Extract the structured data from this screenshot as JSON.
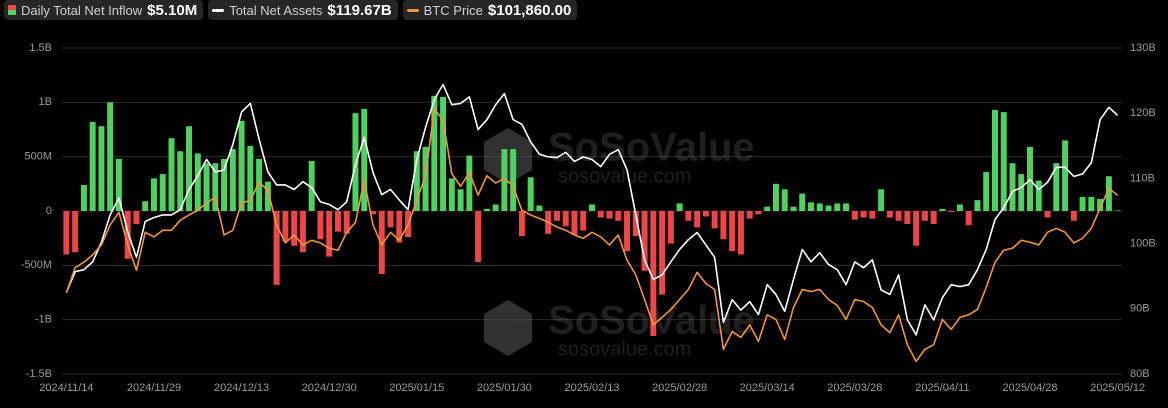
{
  "chart_data": {
    "type": "bar-line",
    "categories": [
      "2024/11/14",
      null,
      null,
      null,
      null,
      null,
      null,
      null,
      null,
      null,
      "2024/11/29",
      null,
      null,
      null,
      null,
      null,
      null,
      null,
      null,
      null,
      "2024/12/13",
      null,
      null,
      null,
      null,
      null,
      null,
      null,
      null,
      null,
      "2024/12/30",
      null,
      null,
      null,
      null,
      null,
      null,
      null,
      null,
      null,
      "2025/01/15",
      null,
      null,
      null,
      null,
      null,
      null,
      null,
      null,
      null,
      "2025/01/30",
      null,
      null,
      null,
      null,
      null,
      null,
      null,
      null,
      null,
      "2025/02/13",
      null,
      null,
      null,
      null,
      null,
      null,
      null,
      null,
      null,
      "2025/02/28",
      null,
      null,
      null,
      null,
      null,
      null,
      null,
      null,
      null,
      "2025/03/14",
      null,
      null,
      null,
      null,
      null,
      null,
      null,
      null,
      null,
      "2025/03/28",
      null,
      null,
      null,
      null,
      null,
      null,
      null,
      null,
      null,
      "2025/04/11",
      null,
      null,
      null,
      null,
      null,
      null,
      null,
      null,
      null,
      "2025/04/28",
      null,
      null,
      null,
      null,
      null,
      null,
      null,
      null,
      null,
      "2025/05/12"
    ],
    "series": [
      {
        "name": "Daily Total Net Inflow",
        "legend_value": "$5.10M",
        "kind": "bar",
        "axis": "y",
        "positive_color": "#4fd05f",
        "negative_color": "#ec4646",
        "values": [
          -400,
          -380,
          240,
          820,
          780,
          1000,
          480,
          -440,
          -120,
          90,
          300,
          340,
          670,
          550,
          780,
          530,
          440,
          440,
          480,
          570,
          830,
          600,
          480,
          270,
          -680,
          -280,
          -320,
          -380,
          460,
          -260,
          -420,
          -190,
          -210,
          900,
          940,
          -30,
          -580,
          -150,
          -290,
          -240,
          550,
          590,
          1060,
          1050,
          300,
          200,
          510,
          -470,
          20,
          60,
          570,
          570,
          -230,
          310,
          50,
          -210,
          -90,
          -140,
          -220,
          -180,
          60,
          -60,
          -70,
          -90,
          -370,
          -230,
          -550,
          -1150,
          -770,
          -300,
          70,
          -90,
          -150,
          -50,
          -160,
          -260,
          -370,
          -400,
          -70,
          -30,
          40,
          250,
          200,
          40,
          160,
          80,
          70,
          50,
          70,
          70,
          -80,
          -60,
          -70,
          200,
          -60,
          -90,
          -120,
          -320,
          -90,
          -120,
          20,
          -10,
          60,
          -130,
          100,
          360,
          930,
          910,
          440,
          340,
          590,
          280,
          -60,
          440,
          650,
          -90,
          130,
          130,
          110,
          320,
          5.1
        ]
      },
      {
        "name": "Total Net Assets",
        "legend_value": "$119.67B",
        "kind": "line",
        "axis": "y2",
        "color": "#ffffff",
        "values": [
          92.5,
          95.7,
          96,
          97.2,
          100.2,
          104.4,
          107,
          101.8,
          97.9,
          103.4,
          104,
          104.4,
          104.4,
          105.2,
          108.3,
          110.4,
          112.9,
          111,
          111.3,
          115.2,
          120.2,
          121.5,
          116,
          111,
          109,
          109,
          108.3,
          109.5,
          108.6,
          106.4,
          106,
          105.2,
          106.4,
          112.1,
          116.3,
          110.9,
          107.5,
          108.3,
          106.7,
          105.2,
          112.9,
          117.8,
          122.1,
          124.4,
          121.3,
          121.5,
          122.5,
          117.5,
          119,
          121.3,
          123,
          119,
          118.3,
          115.6,
          113.7,
          113.3,
          113.2,
          114,
          112.6,
          113.3,
          112.9,
          111.8,
          113.7,
          114.4,
          111.3,
          104.4,
          97.5,
          94.5,
          95.2,
          97.2,
          99.1,
          100.6,
          101.7,
          99.8,
          97.9,
          87.9,
          91.4,
          89.8,
          91.1,
          89.1,
          93.7,
          92.2,
          89.6,
          94.5,
          99.1,
          97.2,
          98.6,
          96.8,
          96,
          93.7,
          97.2,
          96.3,
          97.5,
          92.9,
          92.2,
          95.2,
          88.3,
          86,
          90.6,
          88.3,
          91.7,
          93.7,
          93.4,
          93.7,
          96,
          99.1,
          103.7,
          105.5,
          108,
          108.6,
          109.8,
          108.3,
          109.4,
          111.7,
          111.7,
          110.3,
          110.7,
          112.4,
          119,
          120.9,
          119.67
        ]
      },
      {
        "name": "BTC Price",
        "legend_value": "$101,860.00",
        "kind": "line",
        "axis": "y3",
        "color": "#f0953a",
        "values": [
          87200,
          91000,
          91800,
          92900,
          94400,
          97400,
          99300,
          94400,
          90600,
          96300,
          95600,
          96600,
          96600,
          98100,
          98900,
          99600,
          100700,
          101600,
          95900,
          96600,
          100700,
          101100,
          103800,
          102600,
          97400,
          94700,
          95900,
          94400,
          95100,
          94700,
          93900,
          93600,
          96300,
          97800,
          104100,
          97400,
          94400,
          96300,
          95100,
          97400,
          101100,
          104800,
          114900,
          113100,
          105100,
          103200,
          105300,
          101900,
          104800,
          103700,
          104400,
          103200,
          99600,
          98900,
          98400,
          97800,
          97100,
          96600,
          95900,
          95400,
          96300,
          95600,
          94400,
          95900,
          92100,
          89900,
          86200,
          82400,
          83500,
          84700,
          86200,
          87700,
          90300,
          88600,
          87700,
          78700,
          81400,
          80500,
          82400,
          79900,
          83900,
          83200,
          80200,
          85000,
          87700,
          87400,
          87700,
          86200,
          85300,
          83200,
          86200,
          85900,
          85000,
          82400,
          81200,
          83900,
          79400,
          76900,
          78700,
          79400,
          83200,
          81700,
          83500,
          83900,
          84700,
          88000,
          91800,
          93600,
          93900,
          95100,
          94800,
          94400,
          96300,
          96900,
          96300,
          94700,
          95400,
          96900,
          99900,
          102900,
          101860
        ]
      }
    ],
    "ylim": [
      -1500,
      1500
    ],
    "yticks": [
      {
        "value": -1500,
        "label": "-1.5B"
      },
      {
        "value": -1000,
        "label": "-1B"
      },
      {
        "value": -500,
        "label": "-500M"
      },
      0,
      {
        "value": 500,
        "label": "500M"
      },
      {
        "value": 1000,
        "label": "1B"
      },
      {
        "value": 1500,
        "label": "1.5B"
      }
    ],
    "y2lim": [
      80,
      130
    ],
    "y2ticks": [
      {
        "value": 80,
        "label": "80B"
      },
      {
        "value": 90,
        "label": "90B"
      },
      {
        "value": 100,
        "label": "100B"
      },
      {
        "value": 110,
        "label": "110B"
      },
      {
        "value": 120,
        "label": "120B"
      },
      {
        "value": 130,
        "label": "130B"
      }
    ],
    "y3lim": [
      75000,
      124000
    ],
    "grid": true,
    "watermark": {
      "brand": "SoSoValue",
      "site": "sosovalue.com"
    }
  }
}
